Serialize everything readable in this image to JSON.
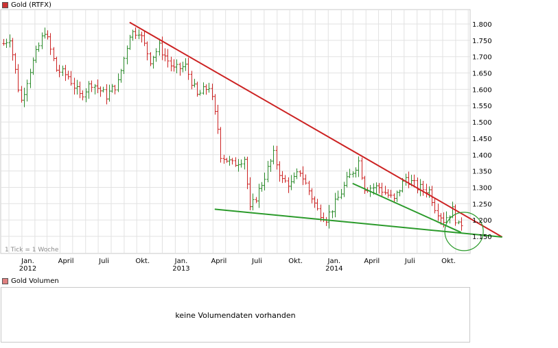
{
  "price_legend": {
    "label": "Gold (RTFX)",
    "color": "#cc3333"
  },
  "volume_legend": {
    "label": "Gold Volumen",
    "color": "#e08080"
  },
  "tick_note": "1 Tick = 1 Woche",
  "volume_panel": {
    "message": "keine Volumendaten vorhanden"
  },
  "chart_data": {
    "type": "ohlc",
    "title": "Gold (RTFX)",
    "x_axis": {
      "tick_labels": [
        "Jan.",
        "April",
        "Juli",
        "Okt.",
        "Jan.",
        "April",
        "Juli",
        "Okt.",
        "Jan.",
        "April",
        "Juli",
        "Okt."
      ],
      "year_labels": [
        "2012",
        "2013",
        "2014"
      ]
    },
    "y_axis": {
      "range": [
        1120,
        1825
      ],
      "ticks": [
        1150,
        1200,
        1250,
        1300,
        1350,
        1400,
        1450,
        1500,
        1550,
        1600,
        1650,
        1700,
        1750,
        1800
      ],
      "tick_labels": [
        "1.150",
        "1.200",
        "1.250",
        "1.300",
        "1.350",
        "1.400",
        "1.450",
        "1.500",
        "1.550",
        "1.600",
        "1.650",
        "1.700",
        "1.750",
        "1.800"
      ],
      "position": "right"
    },
    "grid": true,
    "series": [
      {
        "kind": "weekly-bars",
        "colors": {
          "up": "#2a8a2a",
          "down": "#cc2222"
        },
        "x_start": "2011-11-18",
        "x_end": "2014-11-14",
        "key_closes": [
          [
            "2011-11-18",
            1740
          ],
          [
            "2011-12-02",
            1760
          ],
          [
            "2011-12-23",
            1605
          ],
          [
            "2011-12-30",
            1565
          ],
          [
            "2012-01-20",
            1660
          ],
          [
            "2012-02-24",
            1780
          ],
          [
            "2012-03-23",
            1660
          ],
          [
            "2012-04-20",
            1640
          ],
          [
            "2012-05-18",
            1580
          ],
          [
            "2012-06-15",
            1620
          ],
          [
            "2012-07-20",
            1580
          ],
          [
            "2012-08-17",
            1620
          ],
          [
            "2012-09-14",
            1770
          ],
          [
            "2012-10-05",
            1780
          ],
          [
            "2012-11-02",
            1690
          ],
          [
            "2012-11-23",
            1730
          ],
          [
            "2012-12-28",
            1660
          ],
          [
            "2013-01-25",
            1670
          ],
          [
            "2013-02-22",
            1580
          ],
          [
            "2013-03-22",
            1610
          ],
          [
            "2013-04-12",
            1480
          ],
          [
            "2013-04-19",
            1400
          ],
          [
            "2013-05-17",
            1370
          ],
          [
            "2013-06-14",
            1390
          ],
          [
            "2013-06-28",
            1230
          ],
          [
            "2013-07-19",
            1290
          ],
          [
            "2013-08-23",
            1400
          ],
          [
            "2013-09-13",
            1320
          ],
          [
            "2013-10-04",
            1310
          ],
          [
            "2013-10-25",
            1350
          ],
          [
            "2013-11-15",
            1290
          ],
          [
            "2013-12-06",
            1230
          ],
          [
            "2013-12-27",
            1205
          ],
          [
            "2014-01-17",
            1250
          ],
          [
            "2014-02-14",
            1320
          ],
          [
            "2014-03-14",
            1380
          ],
          [
            "2014-03-28",
            1300
          ],
          [
            "2014-05-02",
            1300
          ],
          [
            "2014-06-06",
            1260
          ],
          [
            "2014-07-04",
            1330
          ],
          [
            "2014-08-01",
            1300
          ],
          [
            "2014-08-29",
            1290
          ],
          [
            "2014-09-12",
            1240
          ],
          [
            "2014-10-03",
            1200
          ],
          [
            "2014-10-24",
            1230
          ],
          [
            "2014-11-07",
            1180
          ],
          [
            "2014-11-14",
            1190
          ]
        ]
      }
    ],
    "annotations": [
      {
        "kind": "trendline",
        "color": "#cc2222",
        "from": [
          "2012-09-14",
          1805
        ],
        "to": [
          "2015-02-20",
          1148
        ]
      },
      {
        "kind": "trendline",
        "color": "#2a9a2a",
        "from": [
          "2013-04-05",
          1233
        ],
        "to": [
          "2015-02-20",
          1148
        ]
      },
      {
        "kind": "trendline",
        "color": "#2a9a2a",
        "from": [
          "2014-02-28",
          1312
        ],
        "to": [
          "2014-11-14",
          1162
        ]
      },
      {
        "kind": "circle",
        "color": "#2a9a2a",
        "center": [
          "2014-11-21",
          1165
        ]
      }
    ]
  }
}
